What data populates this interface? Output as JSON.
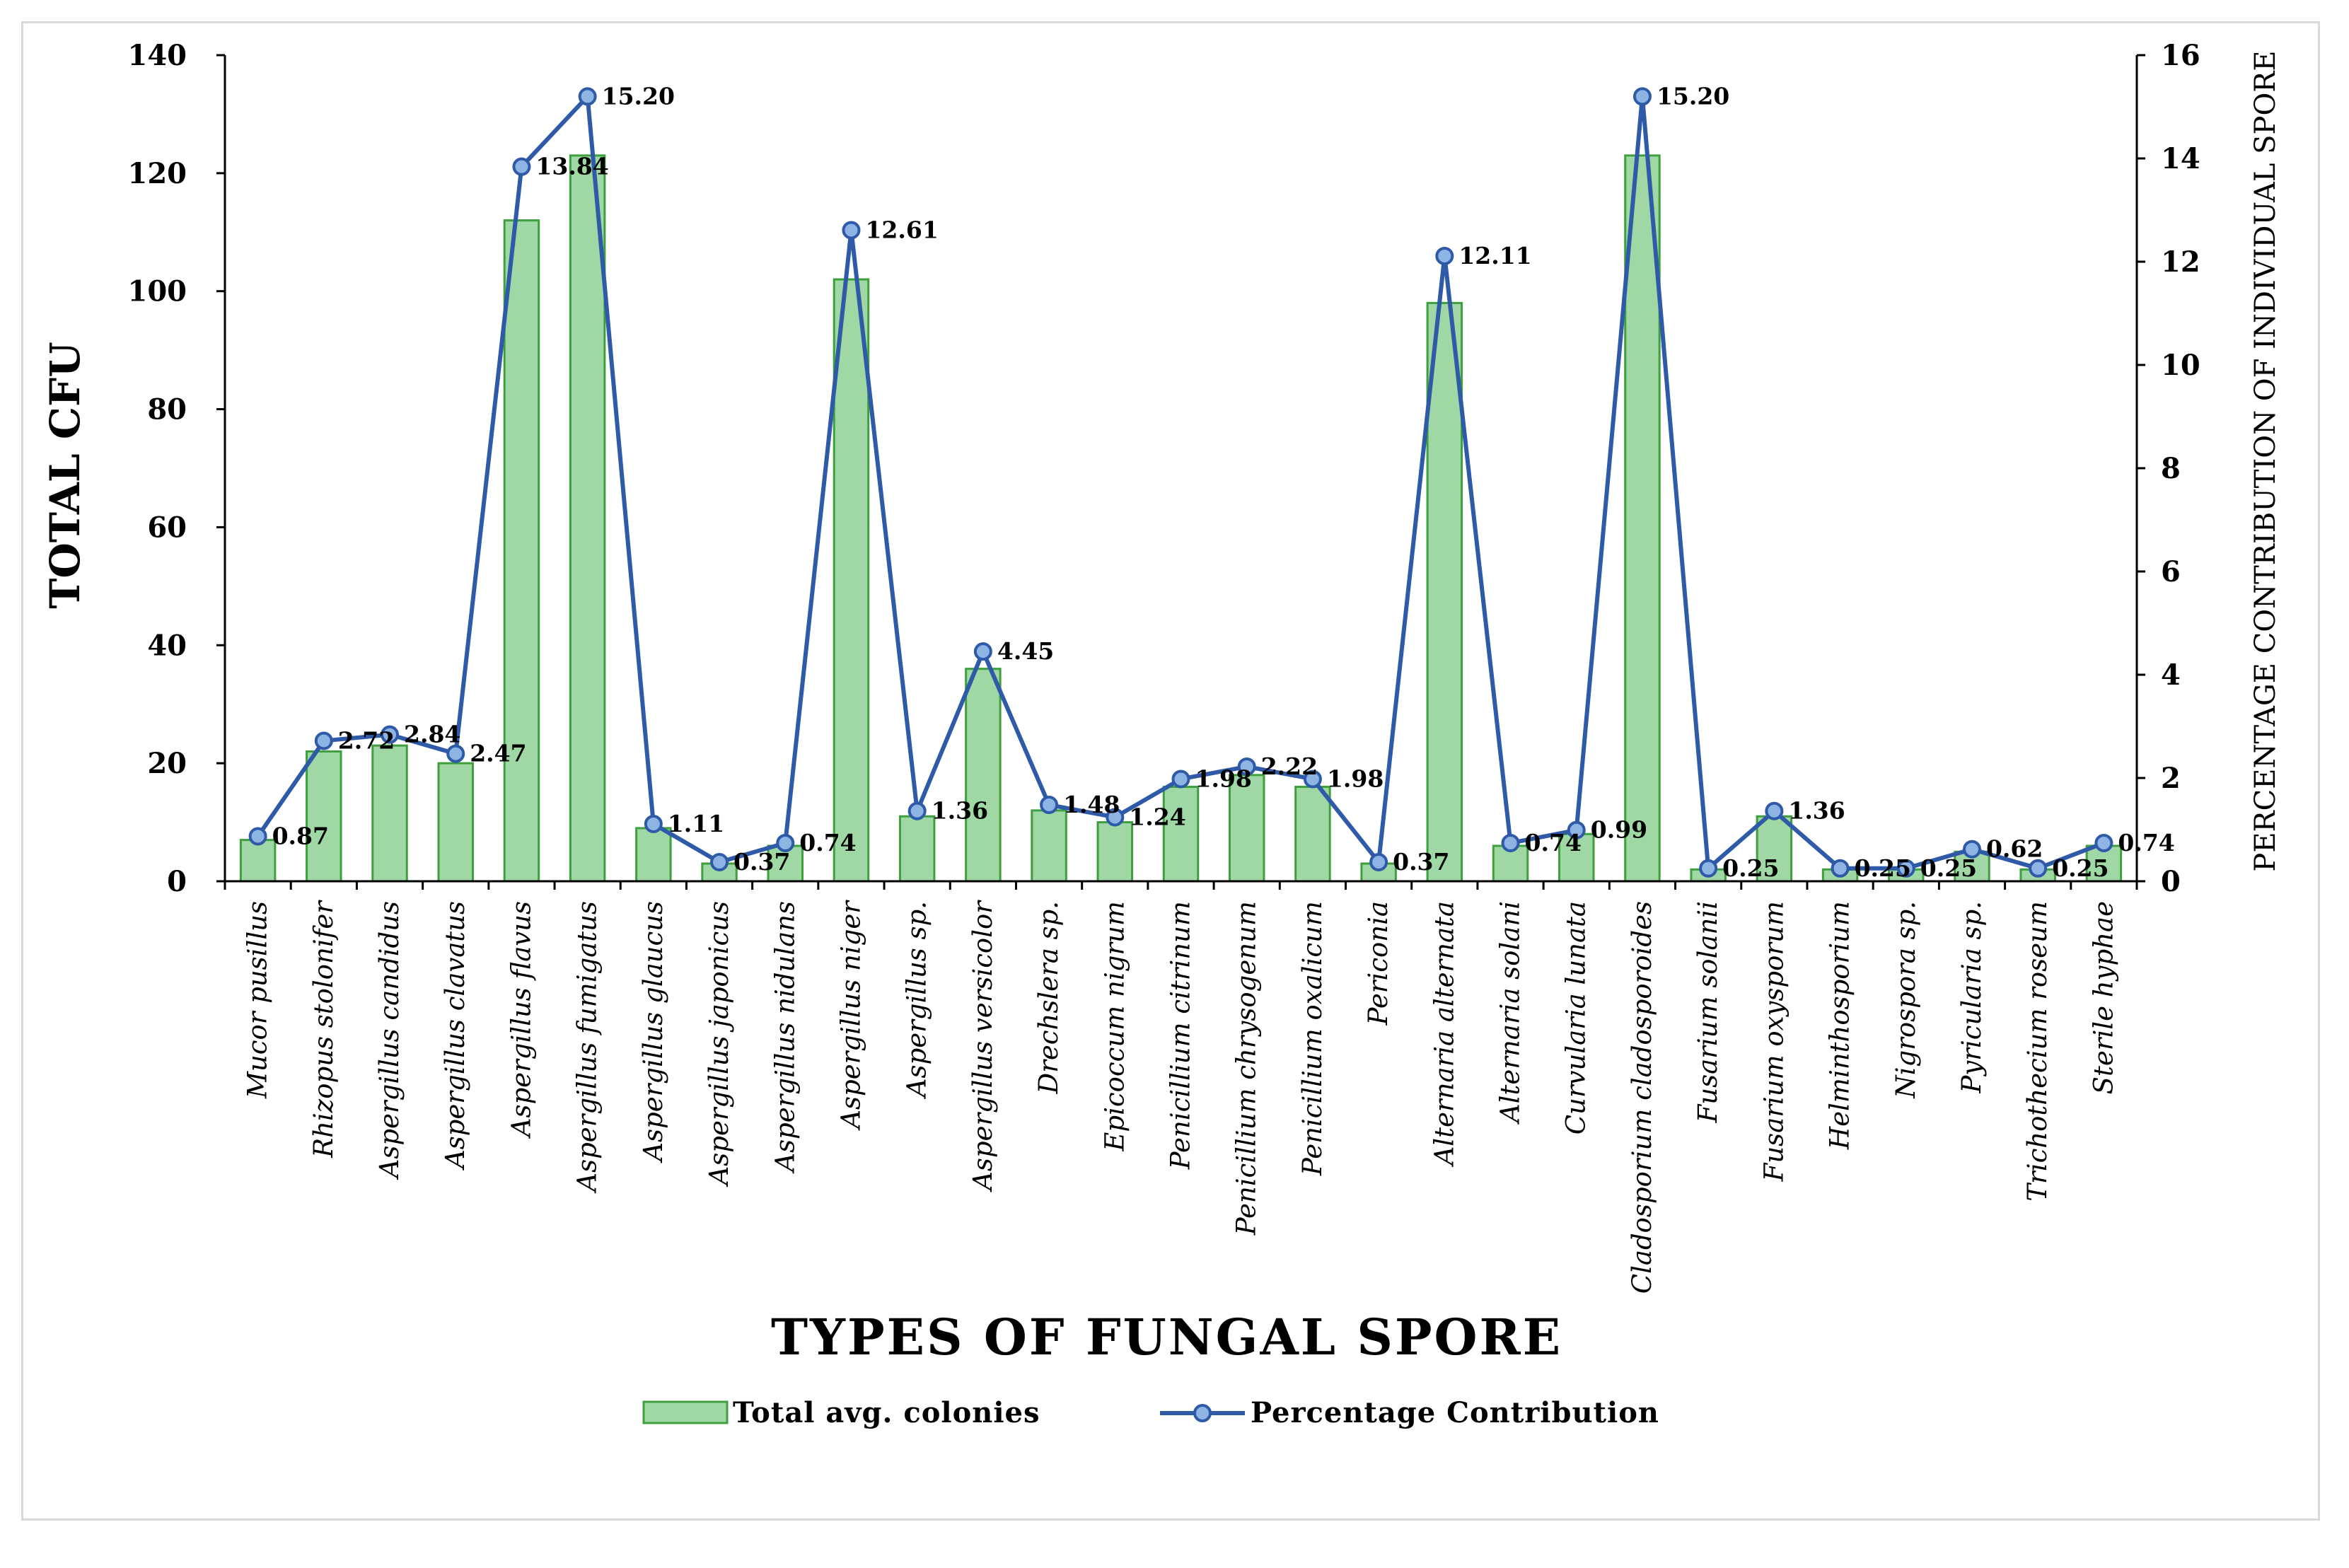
{
  "chart_data": {
    "type": "bar",
    "categories": [
      "Mucor pusillus",
      "Rhizopus stolonifer",
      "Aspergillus candidus",
      "Aspergillus clavatus",
      "Aspergillus flavus",
      "Aspergillus fumigatus",
      "Aspergillus glaucus",
      "Aspergillus japonicus",
      "Aspergillus nidulans",
      "Aspergillus niger",
      "Aspergillus sp.",
      "Aspergillus versicolor",
      "Drechslera sp.",
      "Epicoccum nigrum",
      "Penicillium citrinum",
      "Penicillium chrysogenum",
      "Penicillium oxalicum",
      "Periconia",
      "Alternaria alternata",
      "Alternaria solani",
      "Curvularia lunata",
      "Cladosporium cladosporoides",
      "Fusarium solanii",
      "Fusarium oxysporum",
      "Helminthosporium",
      "Nigrospora sp.",
      "Pyricularia sp.",
      "Trichothecium roseum",
      "Sterile hyphae"
    ],
    "series": [
      {
        "name": "Total avg. colonies",
        "type": "bar",
        "axis": "left",
        "values": [
          7,
          22,
          23,
          20,
          112,
          123,
          9,
          3,
          6,
          102,
          11,
          36,
          12,
          10,
          16,
          18,
          16,
          3,
          98,
          6,
          8,
          123,
          2,
          11,
          2,
          2,
          5,
          2,
          6
        ]
      },
      {
        "name": "Percentage Contribution",
        "type": "line",
        "axis": "right",
        "values": [
          0.87,
          2.72,
          2.84,
          2.47,
          13.84,
          15.2,
          1.11,
          0.37,
          0.74,
          12.61,
          1.36,
          4.45,
          1.48,
          1.24,
          1.98,
          2.22,
          1.98,
          0.37,
          12.11,
          0.74,
          0.99,
          15.2,
          0.25,
          1.36,
          0.25,
          0.25,
          0.62,
          0.25,
          0.74
        ]
      }
    ],
    "data_labels": [
      "0.87",
      "2.72",
      "2.84",
      "2.47",
      "13.84",
      "15.20",
      "1.11",
      "0.37",
      "0.74",
      "12.61",
      "1.36",
      "4.45",
      "1.48",
      "1.24",
      "1.98",
      "2.22",
      "1.98",
      "0.37",
      "12.11",
      "0.74",
      "0.99",
      "15.20",
      "0.25",
      "1.36",
      "0.25",
      "0.25",
      "0.62",
      "0.25",
      "0.74"
    ],
    "ylabel": "TOTAL CFU",
    "y2label": "PERCENTAGE CONTRIBUTION OF INDIVIDUAL SPORE",
    "xlabel": "TYPES OF FUNGAL SPORE",
    "ylim": [
      0,
      140
    ],
    "yticks": [
      "0",
      "20",
      "40",
      "60",
      "80",
      "100",
      "120",
      "140"
    ],
    "y2lim": [
      0,
      16
    ],
    "y2ticks": [
      "0",
      "2",
      "4",
      "6",
      "8",
      "10",
      "12",
      "14",
      "16"
    ],
    "legend_position": "bottom",
    "grid": false,
    "colors": {
      "bar_fill": "#9fd8a4",
      "bar_stroke": "#3f9f3f",
      "line": "#2e5aa8",
      "marker_fill": "#8db4e2",
      "axis": "#000000"
    }
  }
}
